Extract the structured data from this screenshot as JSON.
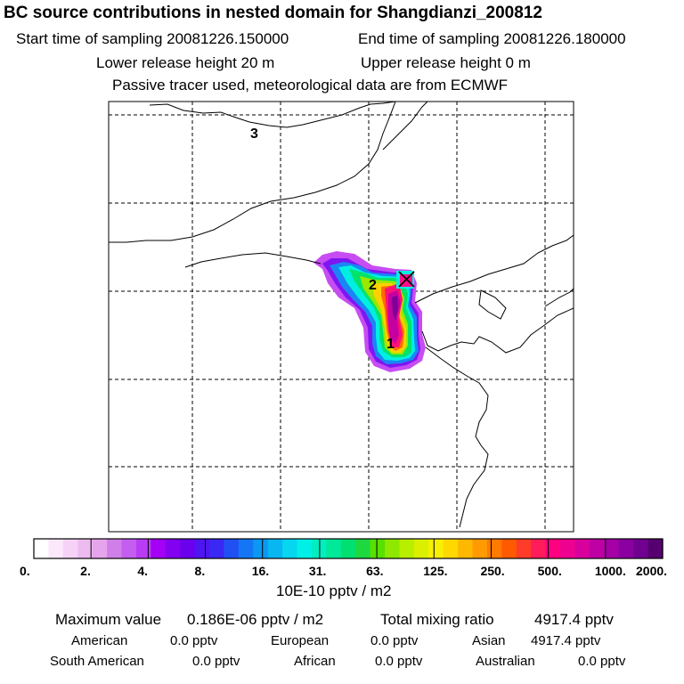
{
  "header": {
    "title": "BC  source contributions in nested domain for Shangdianzi_200812",
    "start_label": "Start time of sampling 20081226.150000",
    "end_label": "End time of sampling 20081226.180000",
    "lower_label": "Lower release height   20 m",
    "upper_label": "Upper release height    0 m",
    "tracer_label": "Passive tracer used, meteorological data are from ECMWF"
  },
  "map": {
    "region_labels": [
      "1",
      "2",
      "3"
    ],
    "receptor_marker": "x-marker-icon"
  },
  "colorbar": {
    "ticks": [
      "0.",
      "2.",
      "4.",
      "8.",
      "16.",
      "31.",
      "63.",
      "125.",
      "250.",
      "500.",
      "1000.",
      "2000."
    ],
    "unit": "10E-10 pptv / m2",
    "colors": [
      "#ffffff",
      "#fbe8fb",
      "#f5d2f6",
      "#eebbf0",
      "#e6a4ec",
      "#d07fe8",
      "#c45ef0",
      "#b83cf3",
      "#a300f5",
      "#8400f0",
      "#6a00ee",
      "#4f14f2",
      "#3a28f4",
      "#2050f3",
      "#1476f5",
      "#0a98f3",
      "#08b6f2",
      "#06d6f0",
      "#00f0e8",
      "#00eec0",
      "#00e89a",
      "#00e070",
      "#1ed840",
      "#58e000",
      "#8ee800",
      "#b8ee00",
      "#daf000",
      "#f8f000",
      "#ffd800",
      "#ffb800",
      "#ff9a00",
      "#ff7a00",
      "#ff5a00",
      "#ff3c2a",
      "#ff1c5a",
      "#ff0080",
      "#ee0090",
      "#d8009c",
      "#bf00a4",
      "#a400a6",
      "#8a00a0",
      "#700090",
      "#560070"
    ]
  },
  "stats": {
    "max_label": "Maximum value",
    "max_value": "0.186E-06 pptv / m2",
    "total_label": "Total mixing ratio",
    "total_value": "4917.4 pptv",
    "regions": [
      {
        "name": "American",
        "value": "0.0 pptv"
      },
      {
        "name": "European",
        "value": "0.0 pptv"
      },
      {
        "name": "Asian",
        "value": "4917.4 pptv"
      },
      {
        "name": "South American",
        "value": "0.0 pptv"
      },
      {
        "name": "African",
        "value": "0.0 pptv"
      },
      {
        "name": "Australian",
        "value": "0.0 pptv"
      }
    ]
  }
}
